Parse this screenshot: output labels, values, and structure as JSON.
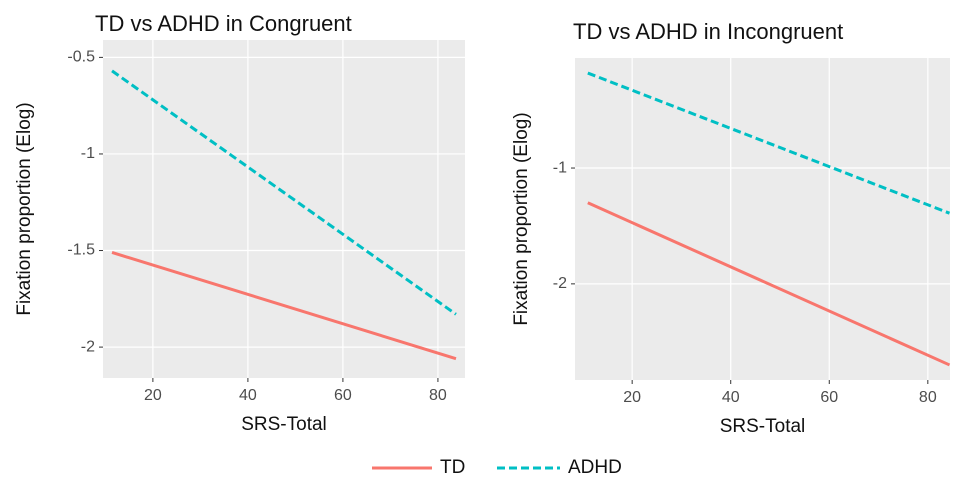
{
  "chart_data": [
    {
      "type": "line",
      "title": "TD vs ADHD in Congruent",
      "x_label": "SRS-Total",
      "y_label": "Fixation proportion (Elog)",
      "x": [
        11.4,
        83.8
      ],
      "series": [
        {
          "name": "TD",
          "color": "#f8766d",
          "dash": false,
          "values": [
            -1.51,
            -2.06
          ]
        },
        {
          "name": "ADHD",
          "color": "#00bfc4",
          "dash": true,
          "values": [
            -0.57,
            -1.83
          ]
        }
      ],
      "xlim": [
        9.5,
        85.7
      ],
      "xticks": [
        20,
        40,
        60,
        80
      ],
      "ylim": [
        -2.16,
        -0.41
      ],
      "yticks": [
        -2.0,
        -1.5,
        -1.0,
        -0.5
      ],
      "grid": true
    },
    {
      "type": "line",
      "title": "TD vs ADHD in Incongruent",
      "x_label": "SRS-Total",
      "y_label": "Fixation proportion (Elog)",
      "x": [
        11,
        84.4
      ],
      "series": [
        {
          "color": "#f8766d",
          "dash": false,
          "values": [
            -1.3,
            -2.7
          ]
        },
        {
          "color": "#00bfc4",
          "dash": true,
          "values": [
            -0.18,
            -1.39
          ]
        }
      ],
      "xlim": [
        8.4,
        84.5
      ],
      "xticks": [
        20,
        40,
        60,
        80
      ],
      "ylim": [
        -2.83,
        -0.05
      ],
      "yticks": [
        -2,
        -1
      ],
      "grid": true
    }
  ]
}
